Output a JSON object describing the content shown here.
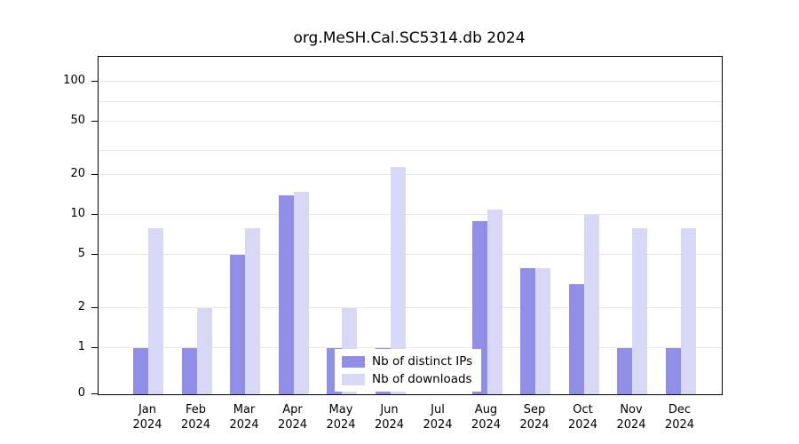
{
  "title": "org.MeSH.Cal.SC5314.db 2024",
  "chart_data": {
    "type": "bar",
    "title": "org.MeSH.Cal.SC5314.db 2024",
    "categories": [
      "Jan",
      "Feb",
      "Mar",
      "Apr",
      "May",
      "Jun",
      "Jul",
      "Aug",
      "Sep",
      "Oct",
      "Nov",
      "Dec"
    ],
    "year_label": "2024",
    "series": [
      {
        "name": "Nb of distinct IPs",
        "color": "#8f8fe8",
        "values": [
          1,
          1,
          5,
          14,
          1,
          1,
          0,
          9,
          4,
          3,
          1,
          1
        ]
      },
      {
        "name": "Nb of downloads",
        "color": "#d8d8f6",
        "values": [
          8,
          2,
          8,
          15,
          2,
          23,
          0,
          11,
          4,
          10,
          8,
          8
        ]
      }
    ],
    "y_axis": {
      "scale": "log",
      "ticks": [
        0,
        1,
        2,
        5,
        10,
        20,
        50,
        100
      ],
      "gridlines": [
        1,
        2,
        5,
        10,
        20,
        30,
        50,
        70,
        100
      ],
      "ylim": [
        0,
        100
      ]
    },
    "x_axis": {
      "label": "",
      "tick_line2": "2024"
    },
    "legend": {
      "position": "inside-bottom-center"
    },
    "grid": true
  }
}
